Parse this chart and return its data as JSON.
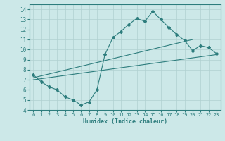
{
  "xlabel": "Humidex (Indice chaleur)",
  "ylabel": "",
  "bg_color": "#cce8e8",
  "line_color": "#2d7d7d",
  "grid_color": "#b0d0d0",
  "xlim": [
    -0.5,
    23.5
  ],
  "ylim": [
    4,
    14.5
  ],
  "yticks": [
    4,
    5,
    6,
    7,
    8,
    9,
    10,
    11,
    12,
    13,
    14
  ],
  "xticks": [
    0,
    1,
    2,
    3,
    4,
    5,
    6,
    7,
    8,
    9,
    10,
    11,
    12,
    13,
    14,
    15,
    16,
    17,
    18,
    19,
    20,
    21,
    22,
    23
  ],
  "curve1_x": [
    0,
    1,
    2,
    3,
    4,
    5,
    6,
    7,
    8,
    9,
    10,
    11,
    12,
    13,
    14,
    15,
    16,
    17,
    18,
    19,
    20,
    21,
    22,
    23
  ],
  "curve1_y": [
    7.5,
    6.8,
    6.3,
    6.0,
    5.3,
    5.0,
    4.5,
    4.8,
    6.0,
    9.5,
    11.2,
    11.8,
    12.5,
    13.1,
    12.8,
    13.8,
    13.0,
    12.2,
    11.5,
    10.9,
    9.9,
    10.4,
    10.2,
    9.6
  ],
  "line2_x": [
    0,
    23
  ],
  "line2_y": [
    7.0,
    9.5
  ],
  "line3_x": [
    0,
    20
  ],
  "line3_y": [
    7.2,
    11.0
  ]
}
